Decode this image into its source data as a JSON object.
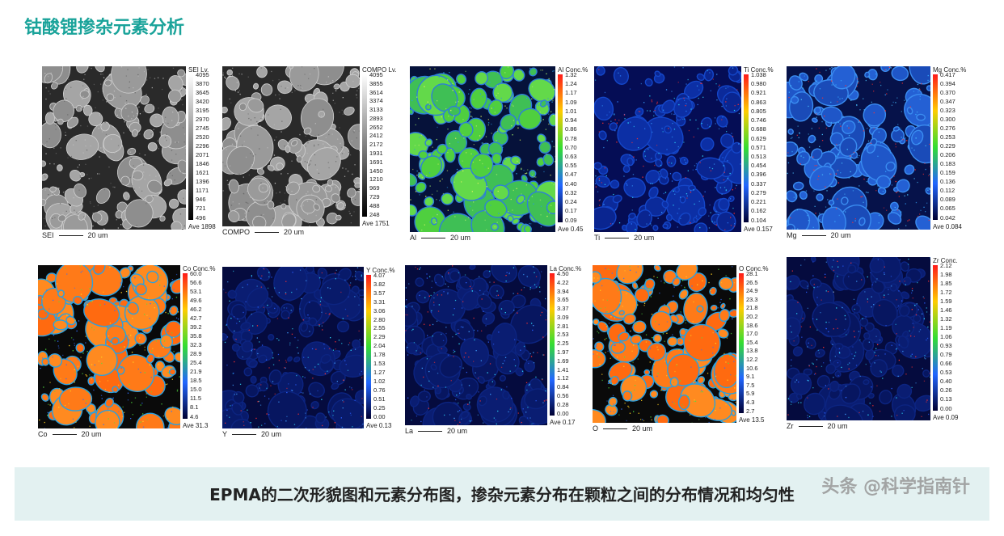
{
  "title": "钴酸锂掺杂元素分析",
  "caption": "EPMA的二次形貌图和元素分布图，掺杂元素分布在颗粒之间的分布情况和均匀性",
  "watermark": "头条 @科学指南针",
  "panels": [
    {
      "element": "SEI",
      "header": "SEI Lv.",
      "ticks": [
        "4095",
        "3870",
        "3645",
        "3420",
        "3195",
        "2970",
        "2745",
        "2520",
        "2296",
        "2071",
        "1846",
        "1621",
        "1396",
        "1171",
        "946",
        "721",
        "496"
      ],
      "ave": "Ave 1898",
      "label": "SEI",
      "scale": "20 um",
      "style": "gray"
    },
    {
      "element": "COMPO",
      "header": "COMPO Lv.",
      "ticks": [
        "4095",
        "3855",
        "3614",
        "3374",
        "3133",
        "2893",
        "2652",
        "2412",
        "2172",
        "1931",
        "1691",
        "1450",
        "1210",
        "969",
        "729",
        "488",
        "248"
      ],
      "ave": "Ave 1751",
      "label": "COMPO",
      "scale": "20 um",
      "style": "gray"
    },
    {
      "element": "Al",
      "header": "Al Conc.%",
      "ticks": [
        "1.32",
        "1.24",
        "1.17",
        "1.09",
        "1.01",
        "0.94",
        "0.86",
        "0.78",
        "0.70",
        "0.63",
        "0.55",
        "0.47",
        "0.40",
        "0.32",
        "0.24",
        "0.17",
        "0.09"
      ],
      "ave": "Ave 0.45",
      "label": "Al",
      "scale": "20 um",
      "style": "green"
    },
    {
      "element": "Ti",
      "header": "Ti Conc.%",
      "ticks": [
        "1.038",
        "0.980",
        "0.921",
        "0.863",
        "0.805",
        "0.746",
        "0.688",
        "0.629",
        "0.571",
        "0.513",
        "0.454",
        "0.396",
        "0.337",
        "0.279",
        "0.221",
        "0.162",
        "0.104"
      ],
      "ave": "Ave 0.157",
      "label": "Ti",
      "scale": "20 um",
      "style": "darkblue"
    },
    {
      "element": "Mg",
      "header": "Mg Conc.%",
      "ticks": [
        "0.417",
        "0.394",
        "0.370",
        "0.347",
        "0.323",
        "0.300",
        "0.276",
        "0.253",
        "0.229",
        "0.206",
        "0.183",
        "0.159",
        "0.136",
        "0.112",
        "0.089",
        "0.065",
        "0.042"
      ],
      "ave": "Ave 0.084",
      "label": "Mg",
      "scale": "20 um",
      "style": "blue"
    },
    {
      "element": "Co",
      "header": "Co Conc.%",
      "ticks": [
        "60.0",
        "56.6",
        "53.1",
        "49.6",
        "46.2",
        "42.7",
        "39.2",
        "35.8",
        "32.3",
        "28.9",
        "25.4",
        "21.9",
        "18.5",
        "15.0",
        "11.5",
        "8.1",
        "4.6"
      ],
      "ave": "Ave 31.3",
      "label": "Co",
      "scale": "20 um",
      "style": "orange"
    },
    {
      "element": "Y",
      "header": "Y Conc.%",
      "ticks": [
        "4.07",
        "3.82",
        "3.57",
        "3.31",
        "3.06",
        "2.80",
        "2.55",
        "2.29",
        "2.04",
        "1.78",
        "1.53",
        "1.27",
        "1.02",
        "0.76",
        "0.51",
        "0.25",
        "0.00"
      ],
      "ave": "Ave 0.13",
      "label": "Y",
      "scale": "20 um",
      "style": "navy"
    },
    {
      "element": "La",
      "header": "La Conc.%",
      "ticks": [
        "4.50",
        "4.22",
        "3.94",
        "3.65",
        "3.37",
        "3.09",
        "2.81",
        "2.53",
        "2.25",
        "1.97",
        "1.69",
        "1.41",
        "1.12",
        "0.84",
        "0.56",
        "0.28",
        "0.00"
      ],
      "ave": "Ave 0.17",
      "label": "La",
      "scale": "20 um",
      "style": "navy"
    },
    {
      "element": "O",
      "header": "O Conc.%",
      "ticks": [
        "28.1",
        "26.5",
        "24.9",
        "23.3",
        "21.8",
        "20.2",
        "18.6",
        "17.0",
        "15.4",
        "13.8",
        "12.2",
        "10.6",
        "9.1",
        "7.5",
        "5.9",
        "4.3",
        "2.7"
      ],
      "ave": "Ave 13.5",
      "label": "O",
      "scale": "20 um",
      "style": "orange"
    },
    {
      "element": "Zr",
      "header": "Zr Conc.",
      "ticks": [
        "2.12",
        "1.98",
        "1.85",
        "1.72",
        "1.59",
        "1.46",
        "1.32",
        "1.19",
        "1.06",
        "0.93",
        "0.79",
        "0.66",
        "0.53",
        "0.40",
        "0.26",
        "0.13",
        "0.00"
      ],
      "ave": "Ave 0.09",
      "label": "Zr",
      "scale": "20 um",
      "style": "navy"
    }
  ]
}
